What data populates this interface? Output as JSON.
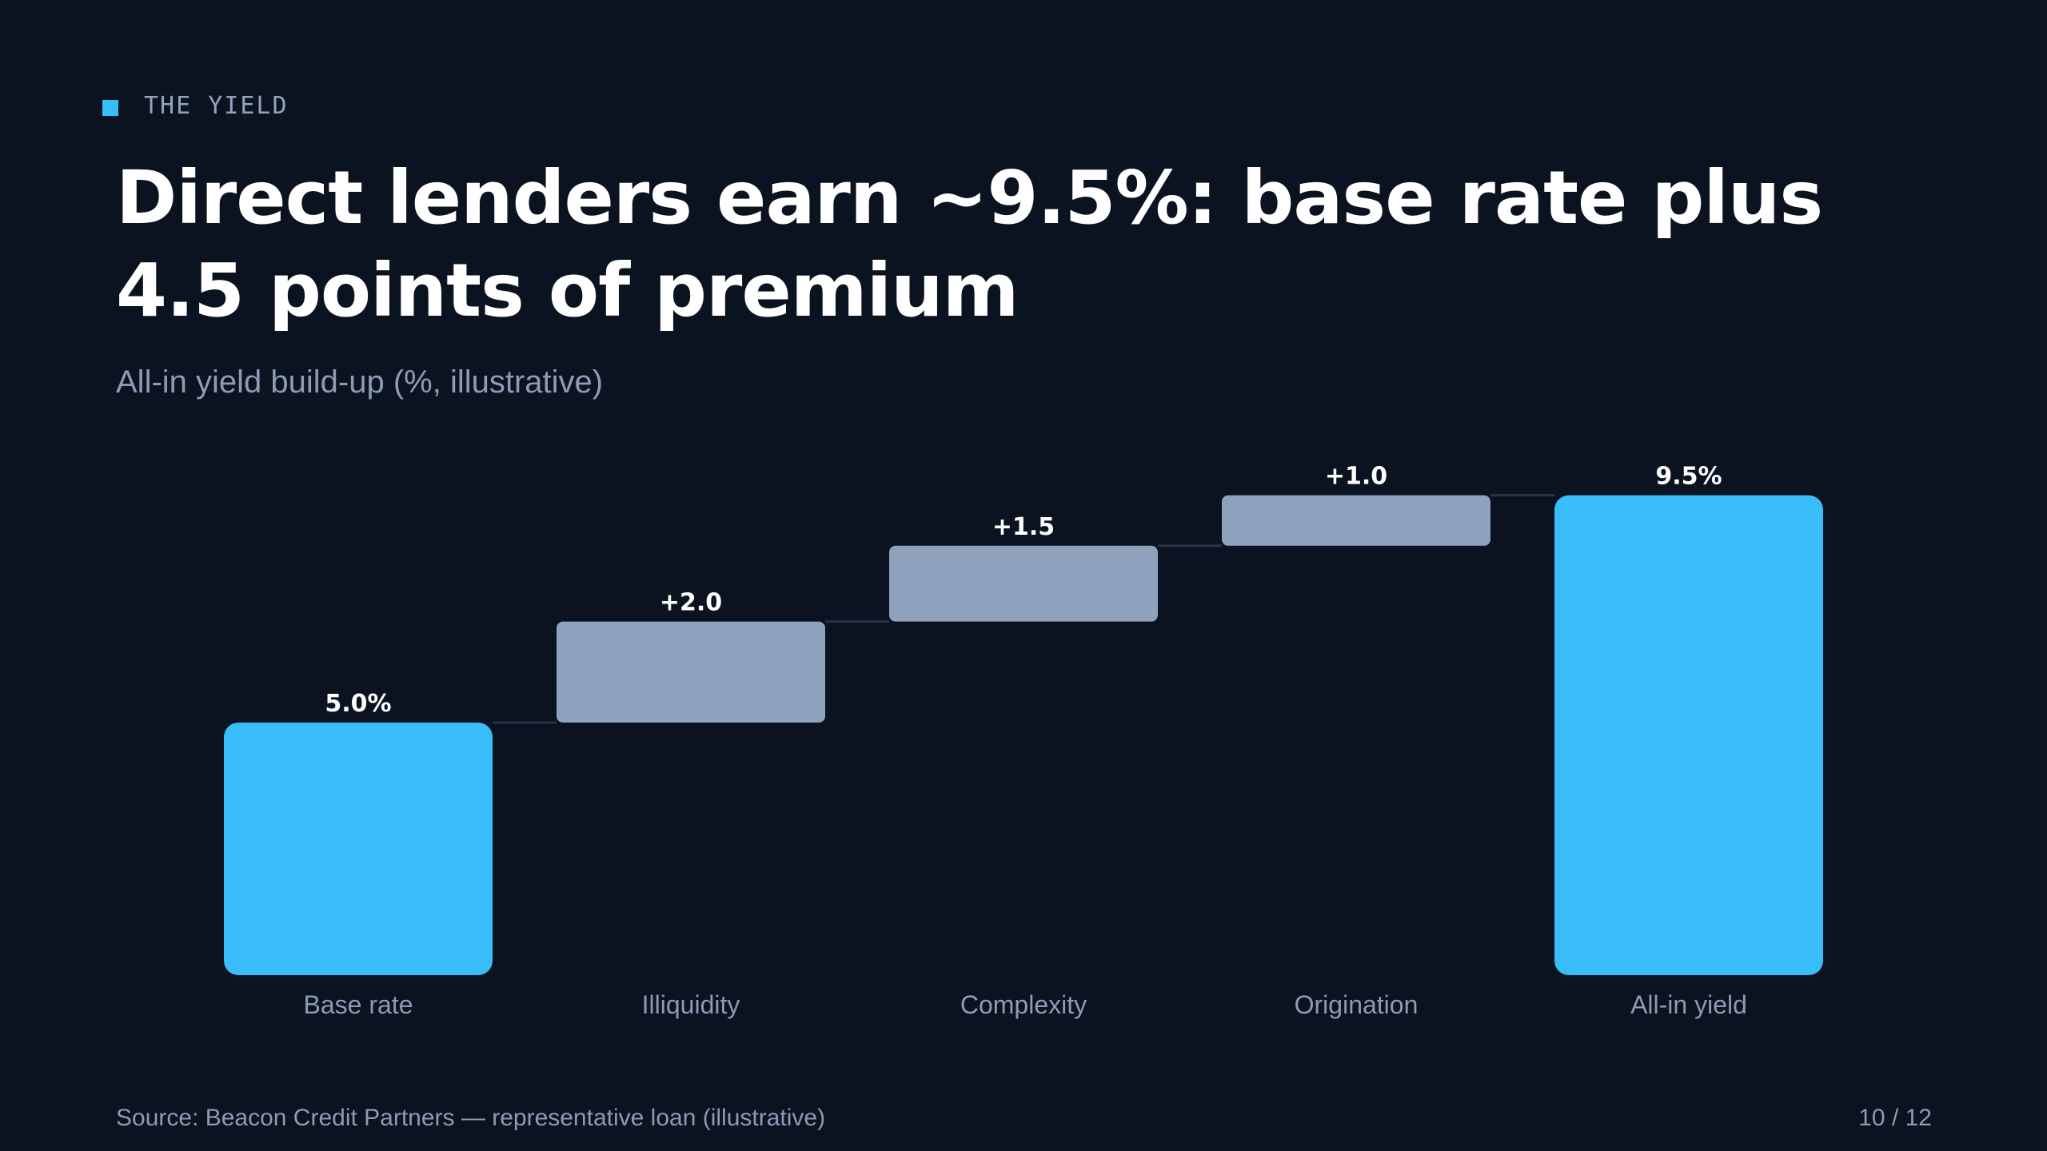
{
  "slide": {
    "eyebrow": "THE YIELD",
    "title": "Direct lenders earn ~9.5%: base rate plus 4.5 points of premium",
    "subtitle": "All-in yield build-up (%, illustrative)",
    "source": "Source: Beacon Credit Partners — representative loan (illustrative)",
    "page": "10 / 12"
  },
  "colors": {
    "background": "#0b1220",
    "total_bar": "#38bdf8",
    "increment_bar": "#8fa2bd",
    "connector": "#26344a",
    "label_text": "#ffffff",
    "muted_text": "#8d9bb4"
  },
  "chart_data": {
    "type": "waterfall",
    "title": "All-in yield build-up (%, illustrative)",
    "xlabel": "",
    "ylabel": "",
    "ylim": [
      0,
      9.5
    ],
    "grid": false,
    "categories": [
      "Base rate",
      "Illiquidity",
      "Complexity",
      "Origination",
      "All-in yield"
    ],
    "values": [
      5.0,
      2.0,
      1.5,
      1.0,
      9.5
    ],
    "kinds": [
      "total",
      "increment",
      "increment",
      "increment",
      "total"
    ],
    "data_labels": [
      "5.0%",
      "+2.0",
      "+1.5",
      "+1.0",
      "9.5%"
    ]
  }
}
